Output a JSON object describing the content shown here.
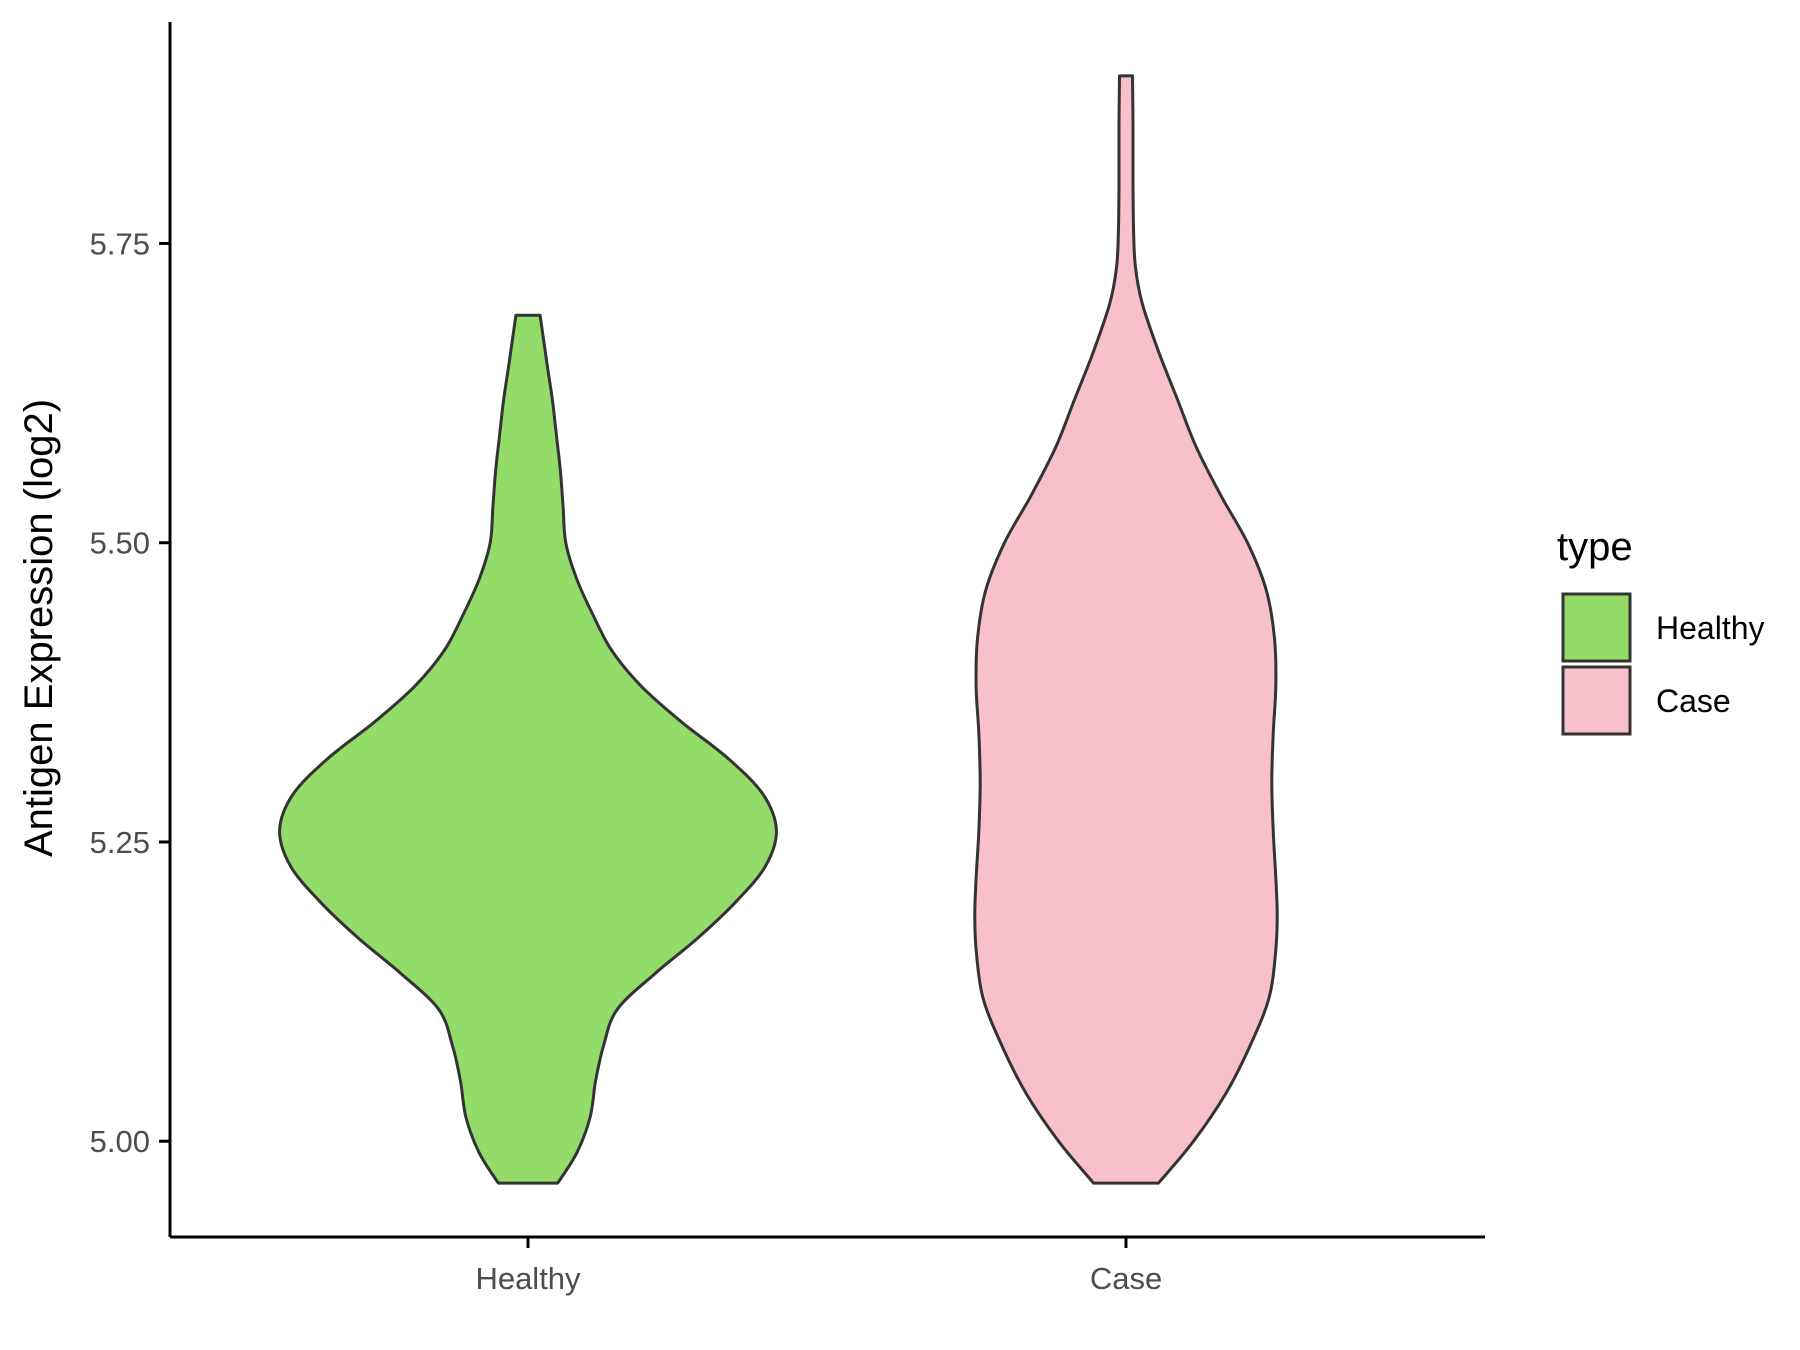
{
  "chart_data": {
    "type": "violin",
    "title": "",
    "xlabel": "",
    "ylabel": "Antigen Expression (log2)",
    "categories": [
      "Healthy",
      "Case"
    ],
    "ylim": [
      4.92,
      5.935
    ],
    "yticks": [
      5.0,
      5.25,
      5.5,
      5.75
    ],
    "ytick_labels": [
      "5.00",
      "5.25",
      "5.50",
      "5.75"
    ],
    "grid": false,
    "legend": {
      "title": "type",
      "position": "right",
      "entries": [
        {
          "label": "Healthy",
          "color": "#93dc6a"
        },
        {
          "label": "Case",
          "color": "#f7c0cb"
        }
      ]
    },
    "series": [
      {
        "name": "Healthy",
        "color": "#93dc6a",
        "min": 4.965,
        "max": 5.69,
        "density_profile": [
          [
            4.965,
            0.11
          ],
          [
            4.99,
            0.18
          ],
          [
            5.02,
            0.23
          ],
          [
            5.05,
            0.25
          ],
          [
            5.08,
            0.28
          ],
          [
            5.11,
            0.33
          ],
          [
            5.14,
            0.47
          ],
          [
            5.17,
            0.63
          ],
          [
            5.2,
            0.77
          ],
          [
            5.23,
            0.88
          ],
          [
            5.26,
            0.92
          ],
          [
            5.29,
            0.87
          ],
          [
            5.32,
            0.74
          ],
          [
            5.35,
            0.57
          ],
          [
            5.38,
            0.42
          ],
          [
            5.41,
            0.31
          ],
          [
            5.44,
            0.24
          ],
          [
            5.47,
            0.18
          ],
          [
            5.5,
            0.14
          ],
          [
            5.53,
            0.13
          ],
          [
            5.56,
            0.12
          ],
          [
            5.59,
            0.105
          ],
          [
            5.62,
            0.09
          ],
          [
            5.65,
            0.07
          ],
          [
            5.69,
            0.045
          ]
        ]
      },
      {
        "name": "Case",
        "color": "#f7c0cb",
        "min": 4.965,
        "max": 5.89,
        "density_profile": [
          [
            4.965,
            0.12
          ],
          [
            5.0,
            0.25
          ],
          [
            5.04,
            0.37
          ],
          [
            5.08,
            0.46
          ],
          [
            5.12,
            0.53
          ],
          [
            5.16,
            0.555
          ],
          [
            5.19,
            0.56
          ],
          [
            5.22,
            0.555
          ],
          [
            5.26,
            0.545
          ],
          [
            5.3,
            0.54
          ],
          [
            5.34,
            0.545
          ],
          [
            5.38,
            0.555
          ],
          [
            5.42,
            0.55
          ],
          [
            5.46,
            0.52
          ],
          [
            5.5,
            0.45
          ],
          [
            5.54,
            0.35
          ],
          [
            5.58,
            0.26
          ],
          [
            5.62,
            0.19
          ],
          [
            5.66,
            0.12
          ],
          [
            5.7,
            0.06
          ],
          [
            5.73,
            0.035
          ],
          [
            5.76,
            0.028
          ],
          [
            5.8,
            0.026
          ],
          [
            5.85,
            0.026
          ],
          [
            5.89,
            0.024
          ]
        ]
      }
    ]
  }
}
